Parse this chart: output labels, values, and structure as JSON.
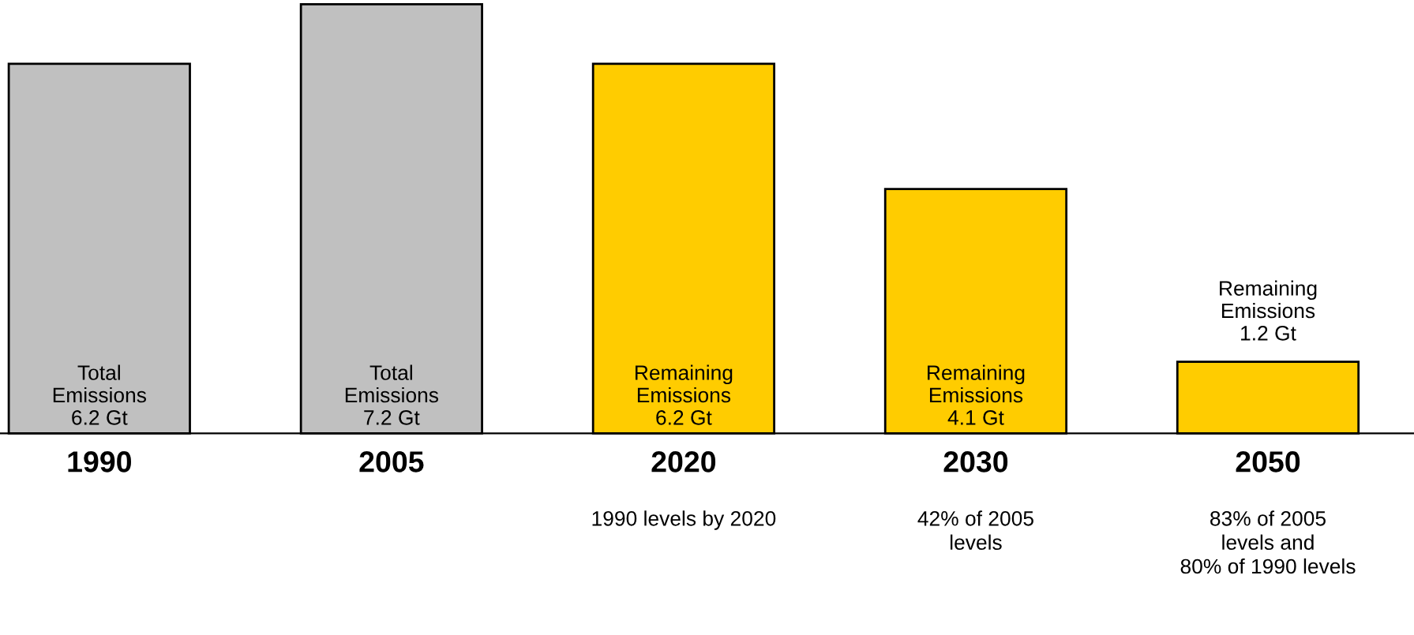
{
  "chart_data": {
    "type": "bar",
    "categories": [
      "1990",
      "2005",
      "2020",
      "2030",
      "2050"
    ],
    "values": [
      6.2,
      7.2,
      6.2,
      4.1,
      1.2
    ],
    "colors": [
      "#c0c0c0",
      "#c0c0c0",
      "#ffcc00",
      "#ffcc00",
      "#ffcc00"
    ],
    "value_labels": [
      "Total\nEmissions\n6.2 Gt",
      "Total\nEmissions\n7.2 Gt",
      "Remaining\nEmissions\n6.2 Gt",
      "Remaining\nEmissions\n4.1 Gt",
      "Remaining\nEmissions\n1.2 Gt"
    ],
    "annotations": [
      "1990 levels by 2020",
      "42% of 2005\nlevels",
      "83% of 2005\nlevels and\n80% of 1990 levels"
    ]
  }
}
